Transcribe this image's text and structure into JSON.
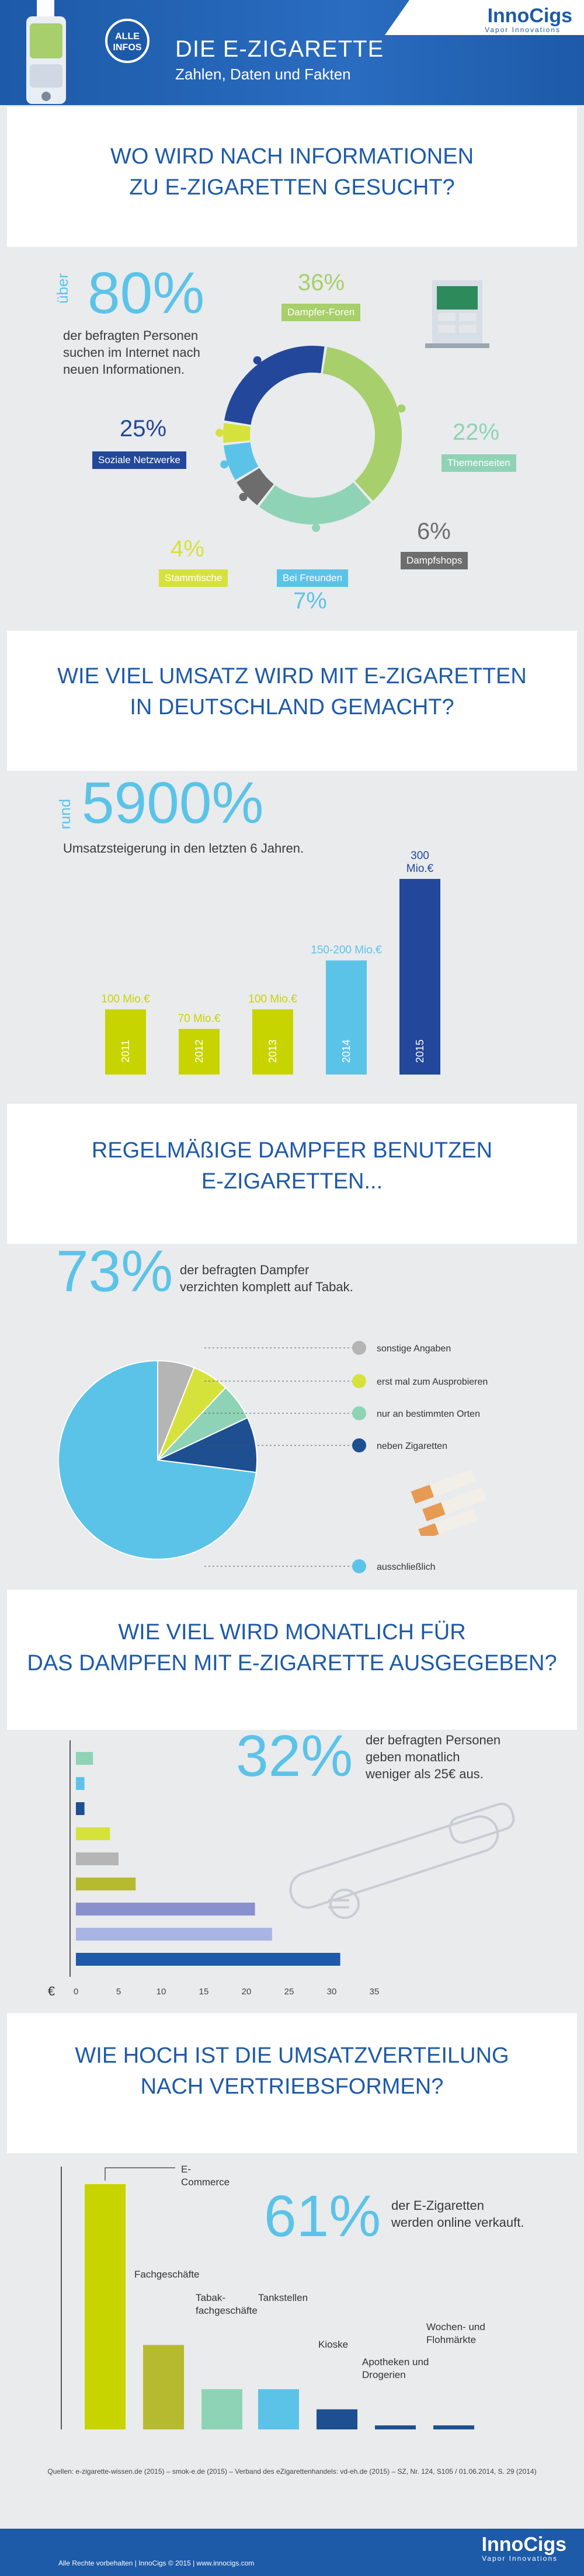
{
  "header": {
    "title": "DIE E-ZIGARETTE",
    "subtitle": "Zahlen, Daten und Fakten",
    "badge": "ALLE INFOS",
    "logo": "InnoCigs",
    "logo_sub": "Vapor Innovations"
  },
  "section1": {
    "title_line1": "WO WIRD NACH INFORMATIONEN",
    "title_line2": "ZU E-ZIGARETTEN GESUCHT?",
    "prefix": "über",
    "big": "80%",
    "text_line1": "der befragten Personen",
    "text_line2": "suchen im Internet nach",
    "text_line3": "neuen Informationen."
  },
  "section2": {
    "title_line1": "WIE VIEL UMSATZ WIRD MIT E-ZIGARETTEN",
    "title_line2": "IN DEUTSCHLAND GEMACHT?",
    "prefix": "rund",
    "big": "5900%",
    "text": "Umsatzsteigerung in den letzten 6 Jahren."
  },
  "section3": {
    "title_line1": "REGELMÄßIGE DAMPFER BENUTZEN",
    "title_line2": "E-ZIGARETTEN...",
    "big": "73%",
    "text_line1": "der befragten Dampfer",
    "text_line2": "verzichten komplett auf Tabak."
  },
  "section4": {
    "title_line1": "WIE VIEL WIRD MONATLICH FÜR",
    "title_line2": "DAS DAMPFEN MIT E-ZIGARETTE AUSGEGEBEN?",
    "big": "32%",
    "text_line1": "der befragten Personen",
    "text_line2": "geben monatlich",
    "text_line3": "weniger als 25€ aus."
  },
  "section5": {
    "title_line1": "WIE HOCH IST DIE UMSATZVERTEILUNG",
    "title_line2": "NACH VERTRIEBSFORMEN?",
    "big": "61%",
    "text_line1": "der E-Zigaretten",
    "text_line2": "werden online verkauft."
  },
  "sources": "Quellen: e-zigarette-wissen.de (2015) – smok-e.de (2015) – Verband des eZigarettenhandels: vd-eh.de (2015) – SZ, Nr. 124, S105 / 01.06.2014, S. 29 (2014)",
  "footer": {
    "text": "Alle Rechte vorbehalten | InnoCigs © 2015 | www.innocigs.com",
    "logo": "InnoCigs",
    "logo_sub": "Vapor Innovations"
  },
  "chart_data": [
    {
      "type": "pie",
      "slices": [
        {
          "label": "Dampfer-Foren",
          "value": 36,
          "color": "#a7cf6b"
        },
        {
          "label": "Themenseiten",
          "value": 22,
          "color": "#8fd3b6"
        },
        {
          "label": "Dampfshops",
          "value": 6,
          "color": "#6d6d6d"
        },
        {
          "label": "Bei Freunden",
          "value": 7,
          "color": "#5cc3e8"
        },
        {
          "label": "Stammtische",
          "value": 4,
          "color": "#d6e23c"
        },
        {
          "label": "Soziale Netzwerke",
          "value": 25,
          "color": "#23479a"
        }
      ],
      "pct_labels": [
        "36%",
        "22%",
        "6%",
        "7%",
        "4%",
        "25%"
      ]
    },
    {
      "type": "bar",
      "categories": [
        "2011",
        "2012",
        "2013",
        "2014",
        "2015"
      ],
      "values": [
        100,
        70,
        100,
        175,
        300
      ],
      "value_labels": [
        "100 Mio.€",
        "70 Mio.€",
        "100 Mio.€",
        "150-200 Mio.€",
        "300 Mio.€"
      ],
      "colors": [
        "#c8d400",
        "#c8d400",
        "#c8d400",
        "#5cc3e8",
        "#23479a"
      ]
    },
    {
      "type": "pie",
      "slices": [
        {
          "label": "ausschließlich",
          "value": 73,
          "color": "#5cc3e8"
        },
        {
          "label": "neben Zigaretten",
          "value": 9,
          "color": "#1d4f91"
        },
        {
          "label": "nur an bestimmten Orten",
          "value": 6,
          "color": "#8fd3b6"
        },
        {
          "label": "erst mal zum Ausprobieren",
          "value": 6,
          "color": "#d6e23c"
        },
        {
          "label": "sonstige Angaben",
          "value": 6,
          "color": "#b5b5b5"
        }
      ]
    },
    {
      "type": "bar",
      "orientation": "horizontal",
      "values": [
        2,
        1,
        1,
        4,
        5,
        7,
        21,
        23,
        31
      ],
      "colors": [
        "#8fd3b6",
        "#5cc3e8",
        "#1d4f91",
        "#d6e23c",
        "#b5b5b5",
        "#b6ba2e",
        "#8a8fce",
        "#aab4e3",
        "#1d5aa8"
      ],
      "xticks": [
        0,
        5,
        10,
        15,
        20,
        25,
        30,
        35
      ],
      "xlabel": "€"
    },
    {
      "type": "bar",
      "categories": [
        "E-Commerce",
        "Fachgeschäfte",
        "Tabak-fachgeschäfte",
        "Tankstellen",
        "Kioske",
        "Apotheken und Drogerien",
        "Wochen- und Flohmärkte"
      ],
      "values": [
        61,
        21,
        10,
        10,
        5,
        1,
        1
      ],
      "colors": [
        "#c8d400",
        "#b6ba2e",
        "#8fd3b6",
        "#5cc3e8",
        "#1d4f91",
        "#1d4f91",
        "#1d4f91"
      ]
    }
  ]
}
